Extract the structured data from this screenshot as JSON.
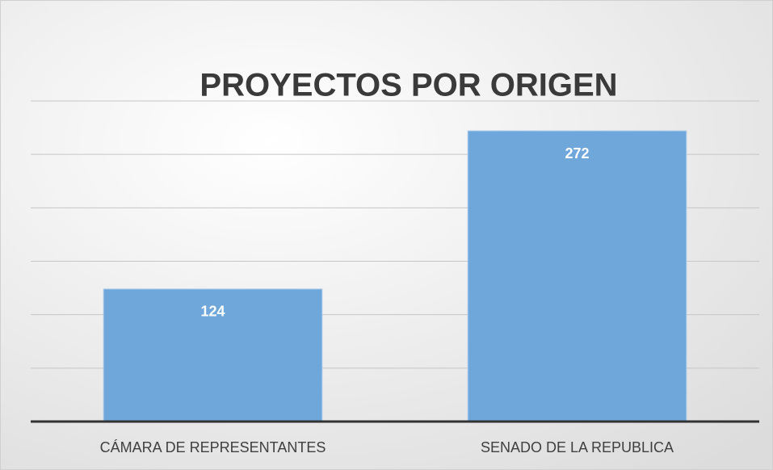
{
  "chart_data": {
    "type": "bar",
    "title": "PROYECTOS POR ORIGEN",
    "categories": [
      "CÁMARA DE REPRESENTANTES",
      "SENADO DE LA REPUBLICA"
    ],
    "values": [
      124,
      272
    ],
    "color": "#6fa7db",
    "ylim": [
      0,
      300
    ],
    "yticks": [
      0,
      50,
      100,
      150,
      200,
      250,
      300
    ],
    "grid": true
  }
}
